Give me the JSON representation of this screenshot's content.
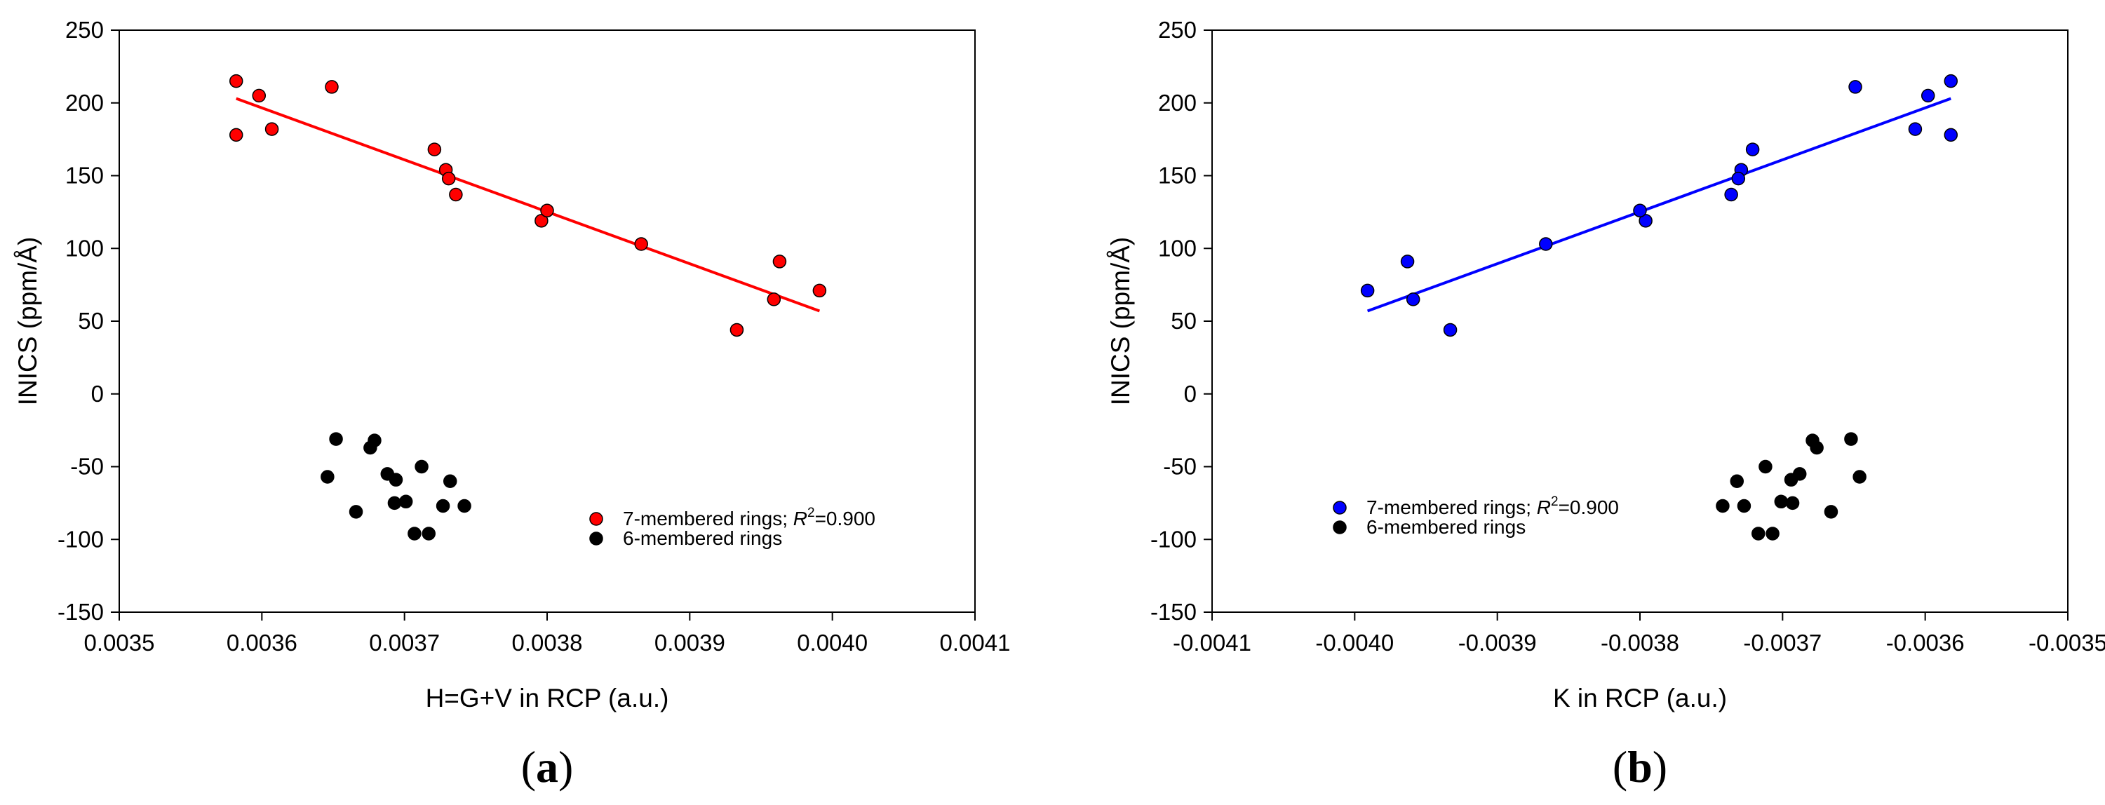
{
  "chart_data": [
    {
      "type": "scatter",
      "panel_label": "a",
      "xlabel": "H=G+V in RCP (a.u.)",
      "ylabel": "INICS (ppm/Å)",
      "xlim": [
        0.0035,
        0.0041
      ],
      "ylim": [
        -150,
        250
      ],
      "x_ticks": [
        "0.0035",
        "0.0036",
        "0.0037",
        "0.0038",
        "0.0039",
        "0.0040",
        "0.0041"
      ],
      "y_ticks": [
        "-150",
        "-100",
        "-50",
        "0",
        "50",
        "100",
        "150",
        "200",
        "250"
      ],
      "legend_position": "bottom-right",
      "series": [
        {
          "name": "7-membered rings; R²=0.900",
          "legend_prefix": "7-membered rings; ",
          "legend_r": "R",
          "legend_sup": "2",
          "legend_suffix": "=0.900",
          "color": "#ff0000",
          "points": [
            [
              0.003582,
              215
            ],
            [
              0.003582,
              178
            ],
            [
              0.003598,
              205
            ],
            [
              0.003607,
              182
            ],
            [
              0.003649,
              211
            ],
            [
              0.003721,
              168
            ],
            [
              0.003729,
              154
            ],
            [
              0.003731,
              148
            ],
            [
              0.003736,
              137
            ],
            [
              0.003796,
              119
            ],
            [
              0.0038,
              126
            ],
            [
              0.003866,
              103
            ],
            [
              0.003933,
              44
            ],
            [
              0.003959,
              65
            ],
            [
              0.003963,
              91
            ],
            [
              0.003991,
              71
            ]
          ],
          "fit": [
            [
              0.003582,
              203
            ],
            [
              0.003991,
              57
            ]
          ]
        },
        {
          "name": "6-membered rings",
          "color": "#000000",
          "points": [
            [
              0.003652,
              -31
            ],
            [
              0.003646,
              -57
            ],
            [
              0.003666,
              -81
            ],
            [
              0.003679,
              -32
            ],
            [
              0.003676,
              -37
            ],
            [
              0.003688,
              -55
            ],
            [
              0.003694,
              -59
            ],
            [
              0.003693,
              -75
            ],
            [
              0.003701,
              -74
            ],
            [
              0.003707,
              -96
            ],
            [
              0.003712,
              -50
            ],
            [
              0.003717,
              -96
            ],
            [
              0.003727,
              -77
            ],
            [
              0.003732,
              -60
            ],
            [
              0.003742,
              -77
            ]
          ]
        }
      ]
    },
    {
      "type": "scatter",
      "panel_label": "b",
      "xlabel": "K in RCP (a.u.)",
      "ylabel": "INICS (ppm/Å)",
      "xlim": [
        -0.0041,
        -0.0035
      ],
      "ylim": [
        -150,
        250
      ],
      "x_ticks": [
        "-0.0041",
        "-0.0040",
        "-0.0039",
        "-0.0038",
        "-0.0037",
        "-0.0036",
        "-0.0035"
      ],
      "y_ticks": [
        "-150",
        "-100",
        "-50",
        "0",
        "50",
        "100",
        "150",
        "200",
        "250"
      ],
      "legend_position": "bottom-left",
      "series": [
        {
          "name": "7-membered rings; R²=0.900",
          "legend_prefix": "7-membered rings; ",
          "legend_r": "R",
          "legend_sup": "2",
          "legend_suffix": "=0.900",
          "color": "#0000ff",
          "points": [
            [
              -0.003582,
              215
            ],
            [
              -0.003582,
              178
            ],
            [
              -0.003598,
              205
            ],
            [
              -0.003607,
              182
            ],
            [
              -0.003649,
              211
            ],
            [
              -0.003721,
              168
            ],
            [
              -0.003729,
              154
            ],
            [
              -0.003731,
              148
            ],
            [
              -0.003736,
              137
            ],
            [
              -0.003796,
              119
            ],
            [
              -0.0038,
              126
            ],
            [
              -0.003866,
              103
            ],
            [
              -0.003933,
              44
            ],
            [
              -0.003959,
              65
            ],
            [
              -0.003963,
              91
            ],
            [
              -0.003991,
              71
            ]
          ],
          "fit": [
            [
              -0.003991,
              57
            ],
            [
              -0.003582,
              203
            ]
          ]
        },
        {
          "name": "6-membered rings",
          "color": "#000000",
          "points": [
            [
              -0.003652,
              -31
            ],
            [
              -0.003646,
              -57
            ],
            [
              -0.003666,
              -81
            ],
            [
              -0.003679,
              -32
            ],
            [
              -0.003676,
              -37
            ],
            [
              -0.003688,
              -55
            ],
            [
              -0.003694,
              -59
            ],
            [
              -0.003693,
              -75
            ],
            [
              -0.003701,
              -74
            ],
            [
              -0.003707,
              -96
            ],
            [
              -0.003712,
              -50
            ],
            [
              -0.003717,
              -96
            ],
            [
              -0.003727,
              -77
            ],
            [
              -0.003732,
              -60
            ],
            [
              -0.003742,
              -77
            ]
          ]
        }
      ]
    }
  ]
}
